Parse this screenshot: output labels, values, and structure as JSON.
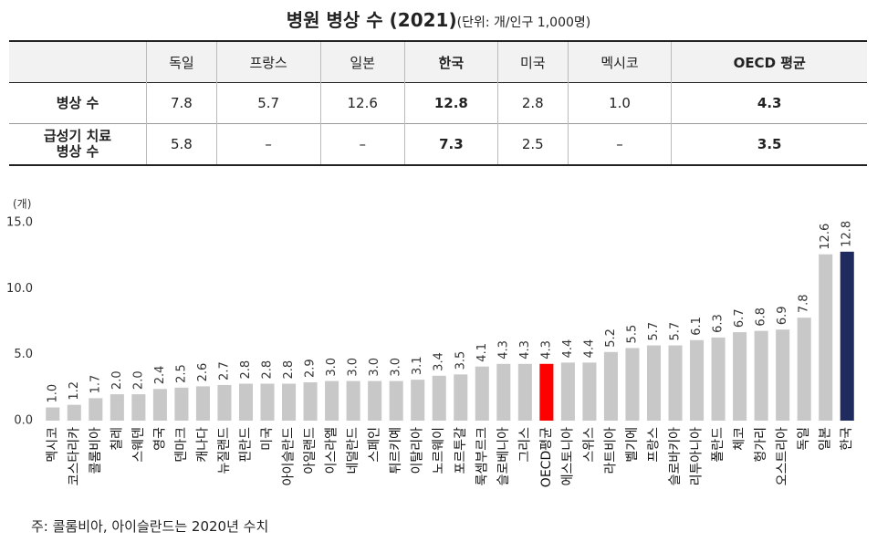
{
  "title": "병원 병상 수 (2021)",
  "unit": "(단위: 개/인구 1,000명)",
  "table": {
    "header": [
      "독일",
      "프랑스",
      "일본",
      "한국",
      "미국",
      "멕시코",
      "OECD 평균"
    ],
    "rows": [
      {
        "label": "병상 수",
        "cells": [
          "7.8",
          "5.7",
          "12.6",
          "12.8",
          "2.8",
          "1.0",
          "4.3"
        ]
      },
      {
        "label": "급성기 치료\n병상 수",
        "cells": [
          "5.8",
          "–",
          "–",
          "7.3",
          "2.5",
          "–",
          "3.5"
        ]
      }
    ]
  },
  "chart_data": {
    "type": "bar",
    "y_label": "(개)",
    "categories": [
      "멕시코",
      "코스타리카",
      "콜롬비아",
      "칠레",
      "스웨덴",
      "영국",
      "덴마크",
      "캐나다",
      "뉴질랜드",
      "핀란드",
      "미국",
      "아이슬란드",
      "아일랜드",
      "이스라엘",
      "네덜란드",
      "스페인",
      "튀르키예",
      "이탈리아",
      "노르웨이",
      "포르투갈",
      "룩셈부르크",
      "슬로베니아",
      "그리스",
      "OECD평균",
      "에스토니아",
      "스위스",
      "라트비아",
      "벨기에",
      "프랑스",
      "슬로바키아",
      "리투아니아",
      "폴란드",
      "체코",
      "헝가리",
      "오스트리아",
      "독일",
      "일본",
      "한국"
    ],
    "values": [
      1.0,
      1.2,
      1.7,
      2.0,
      2.0,
      2.4,
      2.5,
      2.6,
      2.7,
      2.8,
      2.8,
      2.8,
      2.9,
      3.0,
      3.0,
      3.0,
      3.0,
      3.1,
      3.4,
      3.5,
      4.1,
      4.3,
      4.3,
      4.3,
      4.4,
      4.4,
      5.2,
      5.5,
      5.7,
      5.7,
      6.1,
      6.3,
      6.7,
      6.8,
      6.9,
      7.8,
      12.6,
      12.8
    ],
    "value_labels": [
      "1.0",
      "1.2",
      "1.7",
      "2.0",
      "2.0",
      "2.4",
      "2.5",
      "2.6",
      "2.7",
      "2.8",
      "2.8",
      "2.8",
      "2.9",
      "3.0",
      "3.0",
      "3.0",
      "3.0",
      "3.1",
      "3.4",
      "3.5",
      "4.1",
      "4.3",
      "4.3",
      "4.3",
      "4.4",
      "4.4",
      "5.2",
      "5.5",
      "5.7",
      "5.7",
      "6.1",
      "6.3",
      "6.7",
      "6.8",
      "6.9",
      "7.8",
      "12.6",
      "12.8"
    ],
    "colors": [
      "#c8c8c8",
      "#c8c8c8",
      "#c8c8c8",
      "#c8c8c8",
      "#c8c8c8",
      "#c8c8c8",
      "#c8c8c8",
      "#c8c8c8",
      "#c8c8c8",
      "#c8c8c8",
      "#c8c8c8",
      "#c8c8c8",
      "#c8c8c8",
      "#c8c8c8",
      "#c8c8c8",
      "#c8c8c8",
      "#c8c8c8",
      "#c8c8c8",
      "#c8c8c8",
      "#c8c8c8",
      "#c8c8c8",
      "#c8c8c8",
      "#c8c8c8",
      "#ff0000",
      "#c8c8c8",
      "#c8c8c8",
      "#c8c8c8",
      "#c8c8c8",
      "#c8c8c8",
      "#c8c8c8",
      "#c8c8c8",
      "#c8c8c8",
      "#c8c8c8",
      "#c8c8c8",
      "#c8c8c8",
      "#c8c8c8",
      "#c8c8c8",
      "#1f2a5e"
    ],
    "ylim": [
      0,
      15
    ],
    "yticks": [
      {
        "value": 0,
        "label": "0.0"
      },
      {
        "value": 5,
        "label": "5.0"
      },
      {
        "value": 10,
        "label": "10.0"
      },
      {
        "value": 15,
        "label": "15.0"
      }
    ],
    "grid": false
  },
  "note": "주: 콜롬비아, 아이슬란드는 2020년 수치"
}
